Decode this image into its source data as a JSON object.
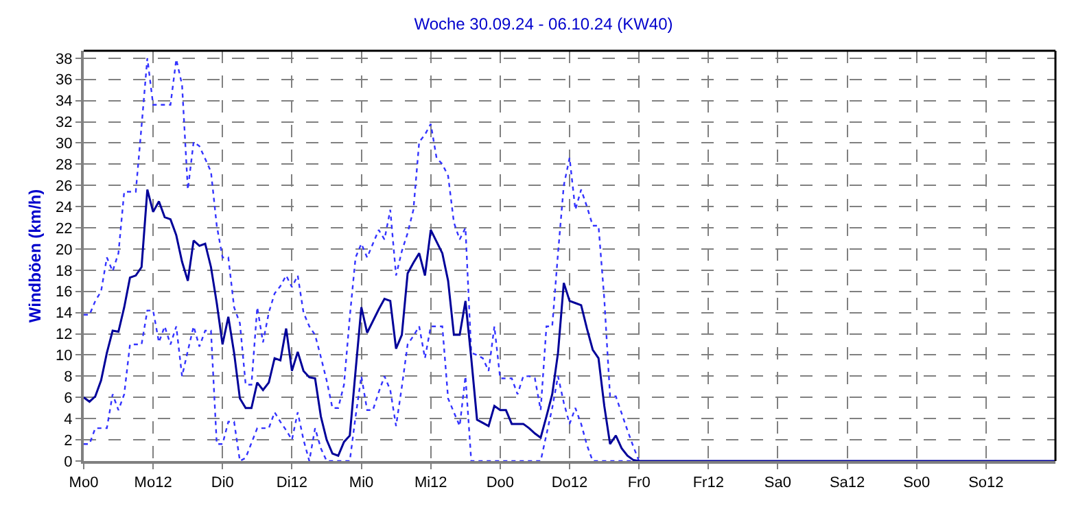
{
  "chart_data": {
    "type": "line",
    "title": "Woche 30.09.24 - 06.10.24 (KW40)",
    "ylabel": "Windböen (km/h)",
    "categories": [
      "Mo0",
      null,
      null,
      null,
      null,
      null,
      null,
      null,
      null,
      null,
      null,
      null,
      "Mo12",
      null,
      null,
      null,
      null,
      null,
      null,
      null,
      null,
      null,
      null,
      null,
      "Di0",
      null,
      null,
      null,
      null,
      null,
      null,
      null,
      null,
      null,
      null,
      null,
      "Di12",
      null,
      null,
      null,
      null,
      null,
      null,
      null,
      null,
      null,
      null,
      null,
      "Mi0",
      null,
      null,
      null,
      null,
      null,
      null,
      null,
      null,
      null,
      null,
      null,
      "Mi12",
      null,
      null,
      null,
      null,
      null,
      null,
      null,
      null,
      null,
      null,
      null,
      "Do0",
      null,
      null,
      null,
      null,
      null,
      null,
      null,
      null,
      null,
      null,
      null,
      "Do12",
      null,
      null,
      null,
      null,
      null,
      null,
      null,
      null,
      null,
      null,
      null,
      "Fr0",
      null,
      null,
      null,
      null,
      null,
      null,
      null,
      null,
      null,
      null,
      null,
      "Fr12",
      null,
      null,
      null,
      null,
      null,
      null,
      null,
      null,
      null,
      null,
      null,
      "Sa0",
      null,
      null,
      null,
      null,
      null,
      null,
      null,
      null,
      null,
      null,
      null,
      "Sa12",
      null,
      null,
      null,
      null,
      null,
      null,
      null,
      null,
      null,
      null,
      null,
      "So0",
      null,
      null,
      null,
      null,
      null,
      null,
      null,
      null,
      null,
      null,
      null,
      "So12",
      null,
      null,
      null,
      null,
      null,
      null,
      null,
      null,
      null,
      null,
      null,
      null
    ],
    "ylim": [
      0,
      38.7
    ],
    "yticks": [
      0,
      2,
      4,
      6,
      8,
      10,
      12,
      14,
      16,
      18,
      20,
      22,
      24,
      26,
      28,
      30,
      32,
      34,
      36,
      38
    ],
    "grid": true,
    "legend": false,
    "series": [
      {
        "color": "#3333ff",
        "line_style": "dotted",
        "values": [
          13.8,
          13.8,
          15.1,
          16,
          19.2,
          17.9,
          19.6,
          25.4,
          25.4,
          25.4,
          31.6,
          38,
          33.6,
          33.6,
          33.6,
          33.6,
          37.9,
          35.5,
          25.6,
          30.1,
          29.7,
          28.5,
          27.3,
          22.2,
          19.2,
          19.2,
          14.5,
          13,
          7.2,
          7.2,
          14.5,
          11.2,
          14,
          15.8,
          16.5,
          17.5,
          16.4,
          17.5,
          14,
          12.7,
          11.9,
          9.8,
          7.6,
          5,
          5,
          7.2,
          13.6,
          19.2,
          20.5,
          19.2,
          20.5,
          21.8,
          20.9,
          23.7,
          17.5,
          19.8,
          21.5,
          23.7,
          30.1,
          30.8,
          31.8,
          28.6,
          28,
          26.9,
          22.5,
          20.9,
          22,
          10.2,
          10,
          9.7,
          8.5,
          12.7,
          7.8,
          7.8,
          7.8,
          6.3,
          8,
          8,
          7.8,
          4.8,
          12.7,
          12.7,
          19.6,
          26,
          28.6,
          23.7,
          25.6,
          24,
          22.2,
          22.2,
          15.3,
          6.1,
          6.1,
          4.5,
          2.9,
          1.4,
          0,
          null,
          null,
          null,
          null,
          null,
          null,
          null,
          null,
          null,
          null,
          null,
          null,
          null,
          null,
          null,
          null,
          null,
          null,
          null,
          null,
          null,
          null,
          null,
          null,
          null,
          null,
          null,
          null,
          null,
          null,
          null,
          null,
          null,
          null,
          null,
          null,
          null,
          null,
          null,
          null,
          null,
          null,
          null,
          null,
          null,
          null,
          null,
          null,
          null,
          null,
          null,
          null,
          null,
          null,
          null,
          null,
          null,
          null,
          null,
          null,
          null,
          null,
          null,
          null,
          null,
          null,
          null,
          null,
          null,
          null,
          null,
          null
        ]
      },
      {
        "color": "#3333ff",
        "line_style": "dotted",
        "values": [
          1.6,
          1.6,
          3.1,
          3.1,
          3.1,
          6.3,
          4.8,
          6.3,
          11,
          11,
          11,
          14.2,
          14.2,
          11.2,
          12.7,
          11,
          12.7,
          8,
          10.4,
          12.7,
          10.8,
          12.3,
          12.3,
          1.6,
          1.6,
          3.7,
          3.7,
          0,
          0.3,
          1.7,
          3.1,
          3.1,
          3.1,
          4.6,
          3.7,
          2.9,
          2,
          4.6,
          2,
          0,
          3.1,
          1.2,
          0,
          0,
          0,
          0,
          0,
          4.2,
          8,
          4.8,
          4.8,
          6.5,
          8,
          6.7,
          3.3,
          7,
          11,
          11.8,
          12.7,
          9.7,
          12.7,
          12.7,
          12.7,
          5.9,
          4.6,
          3.3,
          8,
          0,
          0,
          0,
          0,
          0,
          0,
          0,
          0,
          0,
          0,
          0,
          0,
          0,
          2.5,
          5,
          8,
          5.5,
          3.5,
          5,
          3.5,
          1.5,
          0,
          0,
          0,
          0,
          0,
          0,
          0,
          0,
          null,
          null,
          null,
          null,
          null,
          null,
          null,
          null,
          null,
          null,
          null,
          null,
          null,
          null,
          null,
          null,
          null,
          null,
          null,
          null,
          null,
          null,
          null,
          null,
          null,
          null,
          null,
          null,
          null,
          null,
          null,
          null,
          null,
          null,
          null,
          null,
          null,
          null,
          null,
          null,
          null,
          null,
          null,
          null,
          null,
          null,
          null,
          null,
          null,
          null,
          null,
          null,
          null,
          null,
          null,
          null,
          null,
          null,
          null,
          null,
          null,
          null,
          null,
          null,
          null,
          null,
          null,
          null,
          null,
          null,
          null,
          null,
          null
        ]
      },
      {
        "color": "#000099",
        "line_style": "solid",
        "values": [
          6,
          5.6,
          6.1,
          7.6,
          10.2,
          12.3,
          12.2,
          14.5,
          17.3,
          17.5,
          18.3,
          25.6,
          23.5,
          24.5,
          23,
          22.8,
          21.3,
          18.8,
          17,
          20.8,
          20.3,
          20.5,
          18.3,
          14.9,
          11,
          13.6,
          10.2,
          5.9,
          5,
          5,
          7.4,
          6.7,
          7.4,
          9.7,
          9.5,
          12.5,
          8.5,
          10.3,
          8.5,
          7.9,
          7.8,
          4.2,
          2,
          0.7,
          0.5,
          1.8,
          2.4,
          8.5,
          14.5,
          12.1,
          13.2,
          14.3,
          15.3,
          15.1,
          10.6,
          11.9,
          17.7,
          18.7,
          19.6,
          17.5,
          21.8,
          20.7,
          19.6,
          17,
          11.9,
          11.9,
          15.1,
          9.7,
          3.9,
          3.6,
          3.3,
          5.2,
          4.8,
          4.8,
          3.5,
          3.5,
          3.5,
          3.1,
          2.6,
          2.2,
          4.2,
          6.3,
          10.2,
          16.8,
          15.1,
          14.9,
          14.7,
          12.5,
          10.5,
          9.7,
          5.2,
          1.6,
          2.4,
          1.2,
          0.5,
          0.1,
          0,
          0,
          0,
          0,
          0,
          0,
          0,
          0,
          0,
          0,
          0,
          0,
          0,
          0,
          0,
          0,
          0,
          0,
          0,
          0,
          0,
          0,
          0,
          0,
          0,
          0,
          0,
          0,
          0,
          0,
          0,
          0,
          0,
          0,
          0,
          0,
          0,
          0,
          0,
          0,
          0,
          0,
          0,
          0,
          0,
          0,
          0,
          0,
          0,
          0,
          0,
          0,
          0,
          0,
          0,
          0,
          0,
          0,
          0,
          0,
          0,
          0,
          0,
          0,
          0,
          0,
          0,
          0,
          0,
          0,
          0,
          0,
          0
        ]
      }
    ]
  }
}
